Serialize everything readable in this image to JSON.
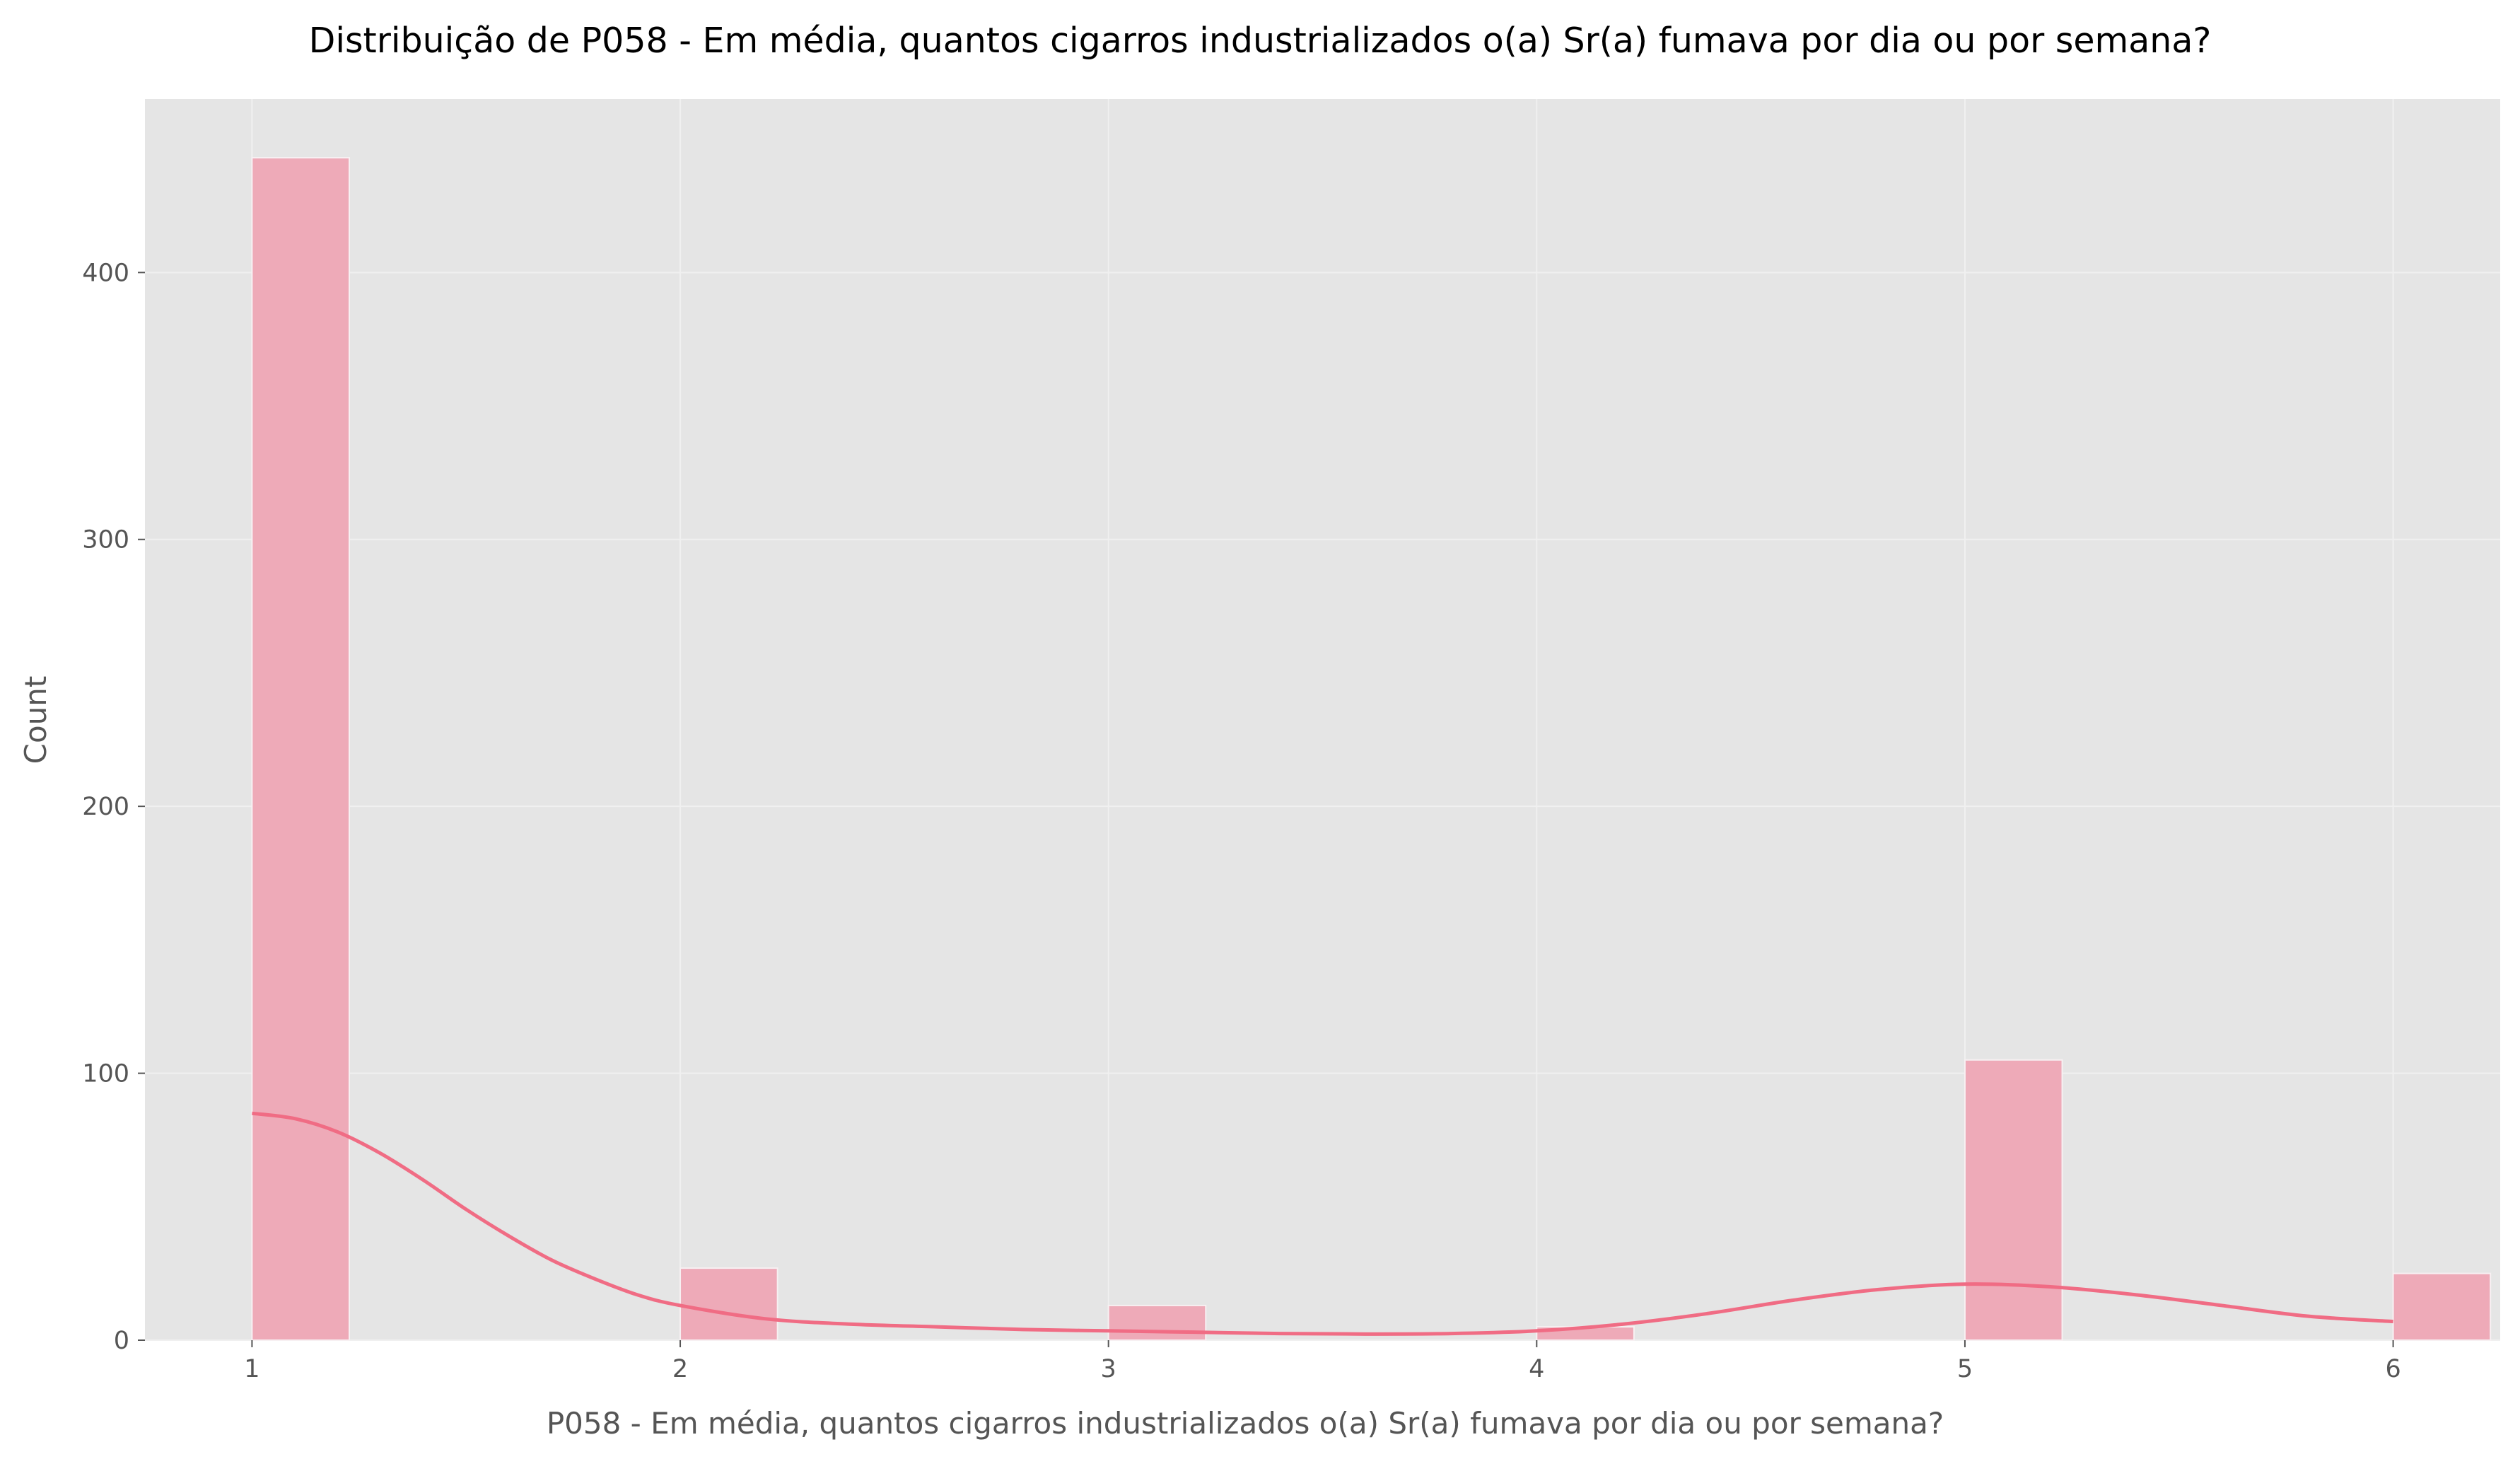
{
  "chart_data": {
    "type": "bar",
    "title": "Distribuição de P058 - Em média, quantos cigarros industrializados o(a) Sr(a) fumava por dia ou por semana?",
    "xlabel": "P058 - Em média, quantos cigarros industrializados o(a) Sr(a) fumava por dia ou por semana?",
    "ylabel": "Count",
    "xlim": [
      0.75,
      6.25
    ],
    "ylim": [
      0,
      465
    ],
    "x_ticks": [
      1,
      2,
      3,
      4,
      5,
      6
    ],
    "x_tick_labels": [
      "1",
      "2",
      "3",
      "4",
      "5",
      "6"
    ],
    "y_ticks": [
      0,
      100,
      200,
      300,
      400
    ],
    "y_tick_labels": [
      "0",
      "100",
      "200",
      "300",
      "400"
    ],
    "grid": true,
    "bin_width": 0.2272,
    "bars": [
      {
        "x": 1,
        "count": 443
      },
      {
        "x": 2,
        "count": 27
      },
      {
        "x": 3,
        "count": 13
      },
      {
        "x": 4,
        "count": 5
      },
      {
        "x": 5,
        "count": 105
      },
      {
        "x": 6,
        "count": 25
      }
    ],
    "kde": {
      "x": [
        1.0,
        1.1,
        1.2,
        1.3,
        1.4,
        1.5,
        1.6,
        1.7,
        1.8,
        1.9,
        2.0,
        2.2,
        2.4,
        2.6,
        2.8,
        3.0,
        3.2,
        3.4,
        3.6,
        3.8,
        4.0,
        4.2,
        4.4,
        4.6,
        4.8,
        5.0,
        5.2,
        5.4,
        5.6,
        5.8,
        6.0
      ],
      "y": [
        85,
        83,
        78,
        70,
        60,
        49,
        39,
        30,
        23,
        17,
        13,
        8,
        6,
        5,
        4,
        3.5,
        3,
        2.5,
        2.3,
        2.5,
        3.5,
        6,
        10,
        15,
        19,
        21,
        20,
        17,
        13,
        9,
        7
      ]
    },
    "colors": {
      "bar_fill": "#eeaab8",
      "bar_edge": "#f7f0f2",
      "kde_line": "#f06c84",
      "plot_bg": "#e5e5e5",
      "grid": "#f0f0f0"
    }
  }
}
